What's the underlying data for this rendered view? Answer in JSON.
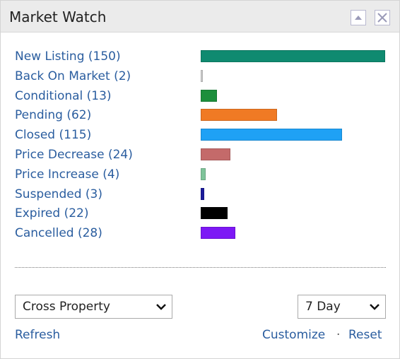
{
  "header": {
    "title": "Market Watch"
  },
  "items": [
    {
      "label": "New Listing (150)",
      "value": 150,
      "color": "#0f8a70"
    },
    {
      "label": "Back On Market (2)",
      "value": 2,
      "color": "#cfcfcf"
    },
    {
      "label": "Conditional (13)",
      "value": 13,
      "color": "#1c8f3c"
    },
    {
      "label": "Pending (62)",
      "value": 62,
      "color": "#f07a24"
    },
    {
      "label": "Closed (115)",
      "value": 115,
      "color": "#1fa1f5"
    },
    {
      "label": "Price Decrease (24)",
      "value": 24,
      "color": "#c46a6a"
    },
    {
      "label": "Price Increase (4)",
      "value": 4,
      "color": "#7fc49a"
    },
    {
      "label": "Suspended (3)",
      "value": 3,
      "color": "#1c1c9c"
    },
    {
      "label": "Expired (22)",
      "value": 22,
      "color": "#000000"
    },
    {
      "label": "Cancelled (28)",
      "value": 28,
      "color": "#7d18f5"
    }
  ],
  "selects": [
    "Cross Property",
    "7 Day"
  ],
  "links": {
    "refresh": "Refresh",
    "customize": "Customize",
    "separator": "·",
    "reset": "Reset"
  }
}
